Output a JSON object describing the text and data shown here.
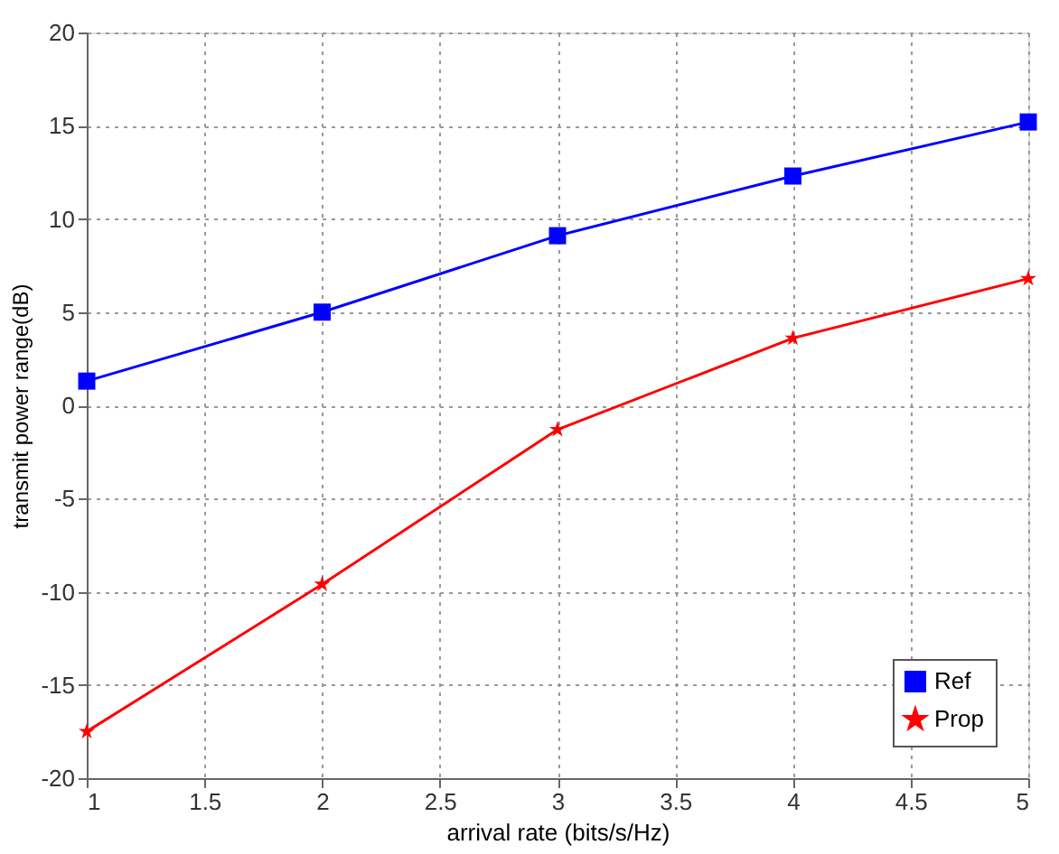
{
  "chart_data": {
    "type": "line",
    "xlabel": "arrival rate (bits/s/Hz)",
    "ylabel": "transmit power range(dB)",
    "x": [
      1,
      2,
      3,
      4,
      5
    ],
    "series": [
      {
        "name": "Ref",
        "color": "#0000ff",
        "marker": "square",
        "values": [
          1.3,
          5.0,
          9.1,
          12.3,
          15.2
        ]
      },
      {
        "name": "Prop",
        "color": "#ff0000",
        "marker": "star",
        "values": [
          -17.5,
          -9.6,
          -1.3,
          3.6,
          6.8
        ]
      }
    ],
    "xlim": [
      1,
      5
    ],
    "xticks": [
      1,
      1.5,
      2,
      2.5,
      3,
      3.5,
      4,
      4.5,
      5
    ],
    "ylim": [
      -20,
      20
    ],
    "yticks": [
      -20,
      -15,
      -10,
      -5,
      0,
      5,
      10,
      15,
      20
    ],
    "grid": true,
    "legend": "bottom right",
    "line_style": "solid"
  }
}
